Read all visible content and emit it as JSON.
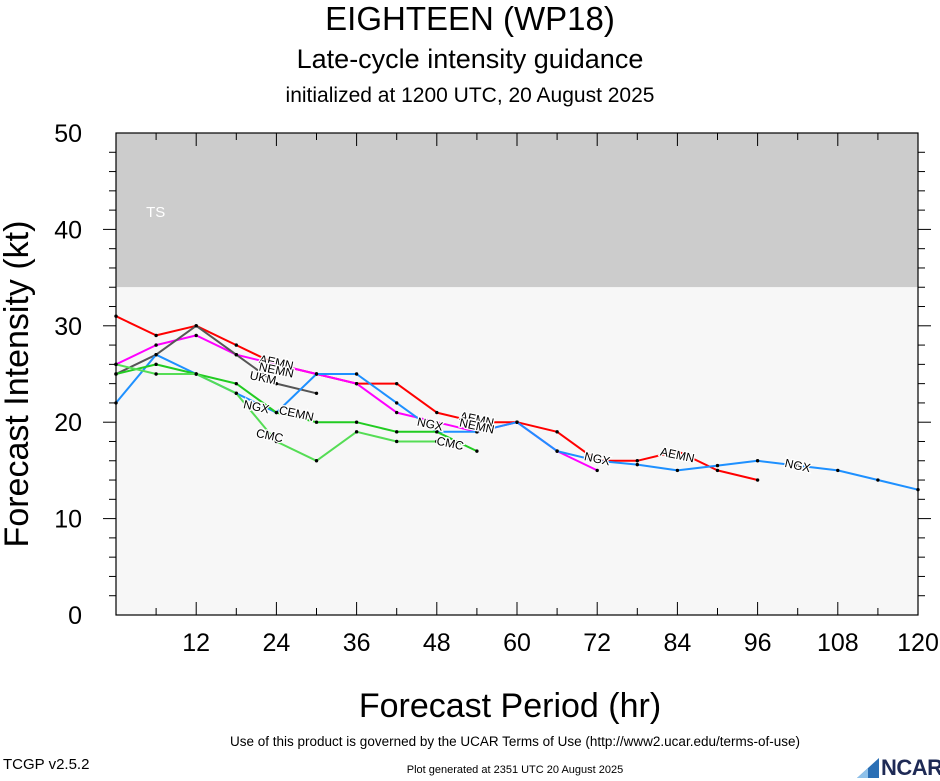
{
  "header": {
    "title": "EIGHTEEN (WP18)",
    "subtitle": "Late-cycle intensity guidance",
    "init": "initialized at 1200 UTC, 20 August 2025"
  },
  "footer": {
    "terms": "Use of this product is governed by the UCAR Terms of Use (http://www2.ucar.edu/terms-of-use)",
    "version": "TCGP v2.5.2",
    "generated": "Plot generated at 2351 UTC   20 August 2025",
    "logo_text": "NCAR"
  },
  "chart_data": {
    "type": "line",
    "xlabel": "Forecast Period (hr)",
    "ylabel": "Forecast Intensity (kt)",
    "xlim": [
      0,
      120
    ],
    "ylim": [
      0,
      50
    ],
    "xticks": [
      12,
      24,
      36,
      48,
      60,
      72,
      84,
      96,
      108,
      120
    ],
    "yticks": [
      0,
      10,
      20,
      30,
      40,
      50
    ],
    "bands": [
      {
        "label": "TS",
        "from": 34,
        "to": 50,
        "color": "#cccccc"
      },
      {
        "label": "",
        "from": 0,
        "to": 34,
        "color": "#f7f7f7"
      }
    ],
    "series": [
      {
        "name": "AEMN",
        "color": "#ff0000",
        "x": [
          0,
          6,
          12,
          18,
          24,
          30,
          36,
          42,
          48,
          54,
          60,
          66,
          72,
          78,
          84,
          90,
          96
        ],
        "y": [
          31,
          29,
          30,
          28,
          26,
          25,
          24,
          24,
          21,
          20,
          20,
          19,
          16,
          16,
          17,
          15,
          14
        ],
        "labels": [
          {
            "x": 24,
            "y": 26.2
          },
          {
            "x": 54,
            "y": 20.3
          },
          {
            "x": 84,
            "y": 16.6
          }
        ]
      },
      {
        "name": "NEMN",
        "color": "#ff00ff",
        "x": [
          0,
          6,
          12,
          18,
          24,
          30,
          36,
          42,
          48,
          54,
          60,
          66,
          72
        ],
        "y": [
          26,
          28,
          29,
          27,
          26,
          25,
          24,
          21,
          20,
          19,
          20,
          17,
          15
        ],
        "labels": [
          {
            "x": 24,
            "y": 25.4
          },
          {
            "x": 54,
            "y": 19.6
          }
        ]
      },
      {
        "name": "UKM",
        "color": "#555555",
        "x": [
          0,
          6,
          12,
          18,
          24,
          30
        ],
        "y": [
          25,
          27,
          30,
          27,
          24,
          23
        ],
        "labels": [
          {
            "x": 22,
            "y": 24.6
          }
        ]
      },
      {
        "name": "NGX",
        "color": "#1e90ff",
        "x": [
          0,
          6,
          12,
          18,
          24,
          30,
          36,
          42,
          48,
          54,
          60,
          66,
          72,
          78,
          84,
          90,
          96,
          102,
          108,
          114,
          120
        ],
        "y": [
          22,
          27,
          25,
          23,
          21,
          25,
          25,
          22,
          19,
          19,
          20,
          17,
          16,
          15.6,
          15,
          15.5,
          16,
          15.5,
          15,
          14,
          13
        ],
        "labels": [
          {
            "x": 21,
            "y": 21.6
          },
          {
            "x": 47,
            "y": 19.8
          },
          {
            "x": 72,
            "y": 16.2
          },
          {
            "x": 102,
            "y": 15.5
          }
        ]
      },
      {
        "name": "CEMN",
        "color": "#22cc22",
        "x": [
          0,
          6,
          12,
          18,
          24,
          30,
          36,
          42,
          48,
          54
        ],
        "y": [
          25,
          26,
          25,
          24,
          21,
          20,
          20,
          19,
          19,
          17
        ],
        "labels": [
          {
            "x": 27,
            "y": 20.9
          }
        ]
      },
      {
        "name": "CMC",
        "color": "#55dd55",
        "x": [
          0,
          6,
          12,
          18,
          24,
          30,
          36,
          42,
          48
        ],
        "y": [
          26,
          25,
          25,
          23,
          18,
          16,
          19,
          18,
          18
        ],
        "labels": [
          {
            "x": 23,
            "y": 18.6
          },
          {
            "x": 50,
            "y": 17.8
          }
        ]
      }
    ]
  }
}
